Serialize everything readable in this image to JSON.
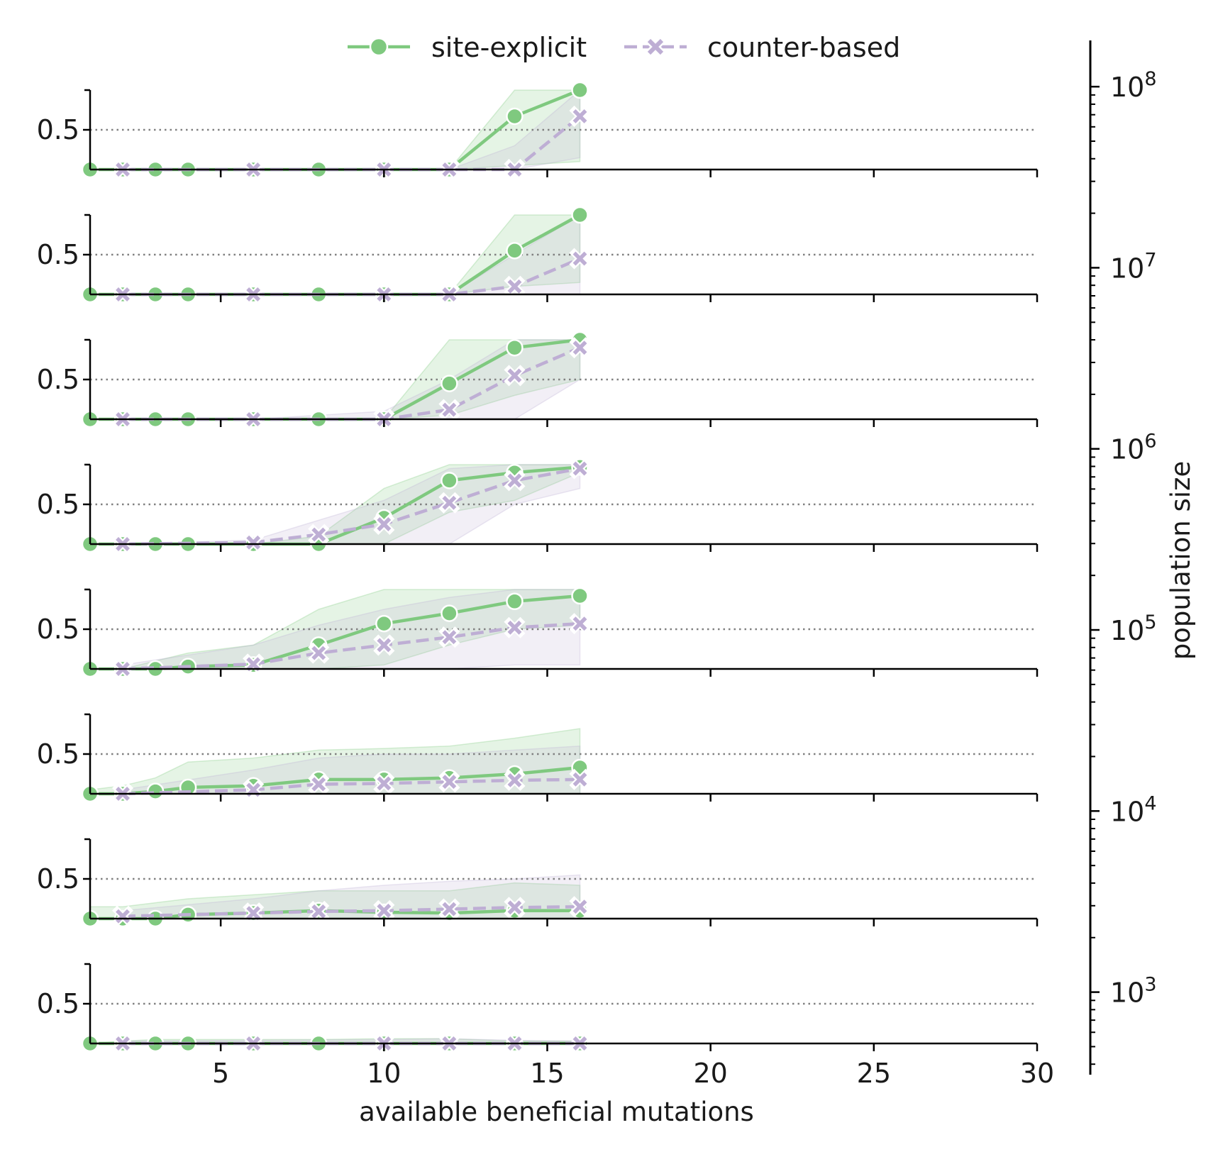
{
  "chart_data": {
    "type": "line",
    "xlabel": "available beneficial mutations",
    "right_axis_label": "population size",
    "xlim": [
      1,
      30
    ],
    "ylim": [
      0,
      1
    ],
    "x_ticks": [
      "5",
      "10",
      "15",
      "20",
      "25",
      "30"
    ],
    "y_tick_label": "0.5",
    "reference_line_y": 0.5,
    "right_axis": {
      "scale": "log",
      "range": [
        350,
        180000000
      ],
      "major_ticks": [
        {
          "value": 100000000,
          "base": "10",
          "exp": "8"
        },
        {
          "value": 10000000,
          "base": "10",
          "exp": "7"
        },
        {
          "value": 1000000,
          "base": "10",
          "exp": "6"
        },
        {
          "value": 100000,
          "base": "10",
          "exp": "5"
        },
        {
          "value": 10000,
          "base": "10",
          "exp": "4"
        },
        {
          "value": 1000,
          "base": "10",
          "exp": "3"
        }
      ]
    },
    "legend": {
      "placement": "top-center",
      "entries": [
        {
          "label": "site-explicit",
          "marker": "circle",
          "dash": "solid"
        },
        {
          "label": "counter-based",
          "marker": "x",
          "dash": "dashed"
        }
      ]
    },
    "series_styles": [
      {
        "name": "site-explicit",
        "color": "#7fc97f",
        "band_color": "#7fc97f"
      },
      {
        "name": "counter-based",
        "color": "#beaed4",
        "band_color": "#beaed4"
      }
    ],
    "panels": [
      {
        "population_size": 100000000,
        "series": [
          {
            "name": "site-explicit",
            "x": [
              1,
              2,
              3,
              4,
              6,
              8,
              10,
              12,
              14,
              16
            ],
            "y": [
              0,
              0,
              0,
              0,
              0,
              0,
              0,
              0,
              0.67,
              1.0
            ],
            "lo": [
              0,
              0,
              0,
              0,
              0,
              0,
              0,
              0,
              0.05,
              0.1
            ],
            "hi": [
              0,
              0,
              0,
              0,
              0,
              0,
              0,
              0,
              1.0,
              1.0
            ]
          },
          {
            "name": "counter-based",
            "x": [
              2,
              6,
              10,
              12,
              14,
              16
            ],
            "y": [
              0,
              0,
              0,
              0,
              0,
              0.67
            ],
            "lo": [
              0,
              0,
              0,
              0,
              0,
              0.15
            ],
            "hi": [
              0,
              0,
              0,
              0,
              0.3,
              1.0
            ]
          }
        ]
      },
      {
        "population_size": 10000000,
        "series": [
          {
            "name": "site-explicit",
            "x": [
              1,
              2,
              3,
              4,
              6,
              8,
              10,
              12,
              14,
              16
            ],
            "y": [
              0,
              0,
              0,
              0,
              0,
              0,
              0,
              0,
              0.55,
              1.0
            ],
            "lo": [
              0,
              0,
              0,
              0,
              0,
              0,
              0,
              0,
              0.1,
              0.15
            ],
            "hi": [
              0,
              0,
              0,
              0,
              0,
              0,
              0,
              0,
              1.0,
              1.0
            ]
          },
          {
            "name": "counter-based",
            "x": [
              2,
              6,
              10,
              12,
              14,
              16
            ],
            "y": [
              0,
              0,
              0,
              0,
              0.1,
              0.45
            ],
            "lo": [
              0,
              0,
              0,
              0,
              0,
              0
            ],
            "hi": [
              0,
              0,
              0,
              0,
              0.5,
              1.0
            ]
          }
        ]
      },
      {
        "population_size": 1000000,
        "series": [
          {
            "name": "site-explicit",
            "x": [
              1,
              2,
              3,
              4,
              6,
              8,
              10,
              12,
              14,
              16
            ],
            "y": [
              0,
              0,
              0,
              0,
              0,
              0,
              0,
              0.45,
              0.9,
              1.0
            ],
            "lo": [
              0,
              0,
              0,
              0,
              0,
              0,
              0,
              0.05,
              0.3,
              0.5
            ],
            "hi": [
              0,
              0,
              0,
              0,
              0,
              0,
              0,
              1.0,
              1.0,
              1.0
            ]
          },
          {
            "name": "counter-based",
            "x": [
              2,
              6,
              10,
              12,
              14,
              16
            ],
            "y": [
              0,
              0,
              0,
              0.12,
              0.55,
              0.9
            ],
            "lo": [
              0,
              0,
              0,
              0,
              0,
              0.5
            ],
            "hi": [
              0,
              0,
              0.1,
              0.5,
              1.0,
              1.0
            ]
          }
        ]
      },
      {
        "population_size": 100000,
        "series": [
          {
            "name": "site-explicit",
            "x": [
              1,
              2,
              3,
              4,
              6,
              8,
              10,
              12,
              14,
              16
            ],
            "y": [
              0,
              0,
              0,
              0,
              0,
              0,
              0.33,
              0.8,
              0.9,
              0.97
            ],
            "lo": [
              0,
              0,
              0,
              0,
              0,
              0,
              0,
              0.4,
              0.55,
              0.9
            ],
            "hi": [
              0,
              0,
              0,
              0,
              0,
              0.1,
              0.7,
              1.0,
              1.0,
              1.0
            ]
          },
          {
            "name": "counter-based",
            "x": [
              2,
              6,
              8,
              10,
              12,
              14,
              16
            ],
            "y": [
              0,
              0.02,
              0.12,
              0.25,
              0.52,
              0.8,
              0.95
            ],
            "lo": [
              0,
              0,
              0,
              0,
              0,
              0.5,
              0.7
            ],
            "hi": [
              0,
              0.05,
              0.3,
              0.55,
              0.95,
              1.0,
              1.0
            ]
          }
        ]
      },
      {
        "population_size": 10000,
        "series": [
          {
            "name": "site-explicit",
            "x": [
              1,
              2,
              3,
              4,
              6,
              8,
              10,
              12,
              14,
              16
            ],
            "y": [
              0,
              0,
              0,
              0.03,
              0.05,
              0.3,
              0.57,
              0.7,
              0.85,
              0.92
            ],
            "lo": [
              0,
              0,
              0,
              0,
              0,
              0,
              0.05,
              0.3,
              0.5,
              0.55
            ],
            "hi": [
              0,
              0,
              0.1,
              0.2,
              0.3,
              0.75,
              1.0,
              1.0,
              1.0,
              1.0
            ]
          },
          {
            "name": "counter-based",
            "x": [
              2,
              6,
              8,
              10,
              12,
              14,
              16
            ],
            "y": [
              0,
              0.06,
              0.2,
              0.3,
              0.4,
              0.52,
              0.57
            ],
            "lo": [
              0,
              0,
              0,
              0,
              0,
              0.05,
              0.05
            ],
            "hi": [
              0.05,
              0.3,
              0.55,
              0.75,
              0.9,
              1.0,
              1.0
            ]
          }
        ]
      },
      {
        "population_size": 1000,
        "series": [
          {
            "name": "site-explicit",
            "x": [
              1,
              2,
              3,
              4,
              6,
              8,
              10,
              12,
              14,
              16
            ],
            "y": [
              0,
              0,
              0.03,
              0.08,
              0.1,
              0.18,
              0.18,
              0.2,
              0.25,
              0.33
            ],
            "lo": [
              0,
              0,
              0,
              0,
              0,
              0,
              0,
              0,
              0,
              0
            ],
            "hi": [
              0.05,
              0.1,
              0.2,
              0.4,
              0.45,
              0.55,
              0.57,
              0.6,
              0.7,
              0.82
            ]
          },
          {
            "name": "counter-based",
            "x": [
              2,
              6,
              8,
              10,
              12,
              14,
              16
            ],
            "y": [
              0,
              0.05,
              0.12,
              0.13,
              0.15,
              0.17,
              0.18
            ],
            "lo": [
              0,
              0,
              0,
              0,
              0,
              0,
              0
            ],
            "hi": [
              0.05,
              0.3,
              0.45,
              0.5,
              0.5,
              0.55,
              0.6
            ]
          }
        ]
      },
      {
        "population_size": 4000,
        "series": [
          {
            "name": "site-explicit",
            "x": [
              1,
              2,
              3,
              4,
              6,
              8,
              10,
              12,
              14,
              16
            ],
            "y": [
              0,
              0,
              0,
              0.05,
              0.07,
              0.1,
              0.08,
              0.07,
              0.1,
              0.1
            ],
            "lo": [
              0,
              0,
              0,
              0,
              0,
              0,
              0,
              0,
              0,
              0
            ],
            "hi": [
              0.15,
              0.15,
              0.2,
              0.25,
              0.3,
              0.35,
              0.35,
              0.35,
              0.45,
              0.42
            ]
          },
          {
            "name": "counter-based",
            "x": [
              2,
              6,
              8,
              10,
              12,
              14,
              16
            ],
            "y": [
              0.03,
              0.07,
              0.09,
              0.1,
              0.12,
              0.14,
              0.15
            ],
            "lo": [
              0,
              0,
              0,
              0,
              0,
              0,
              0
            ],
            "hi": [
              0.1,
              0.25,
              0.35,
              0.42,
              0.47,
              0.5,
              0.55
            ]
          }
        ]
      },
      {
        "population_size": 350,
        "series": [
          {
            "name": "site-explicit",
            "x": [
              1,
              2,
              3,
              4,
              6,
              8,
              10,
              12,
              14,
              16
            ],
            "y": [
              0,
              0,
              0,
              0,
              0,
              0,
              0,
              0,
              0,
              0
            ],
            "lo": [
              0,
              0,
              0,
              0,
              0,
              0,
              0,
              0,
              0,
              0
            ],
            "hi": [
              0,
              0.03,
              0.05,
              0.05,
              0.05,
              0.05,
              0.06,
              0.06,
              0.03,
              0.03
            ]
          },
          {
            "name": "counter-based",
            "x": [
              2,
              6,
              10,
              12,
              14,
              16
            ],
            "y": [
              0,
              0,
              0,
              0,
              0,
              0
            ],
            "lo": [
              0,
              0,
              0,
              0,
              0,
              0
            ],
            "hi": [
              0.03,
              0.04,
              0.05,
              0.06,
              0.04,
              0.03
            ]
          }
        ]
      }
    ]
  }
}
